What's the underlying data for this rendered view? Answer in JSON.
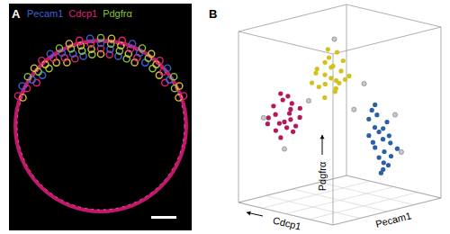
{
  "panel_a": {
    "label": "A",
    "stains": [
      {
        "text": "Pecam1",
        "color": "#3b62d6"
      },
      {
        "text": "Cdcp1",
        "color": "#e0207a"
      },
      {
        "text": "Pdgfrα",
        "color": "#8cc43c"
      }
    ]
  },
  "panel_b": {
    "label": "B"
  },
  "chart_data": {
    "type": "scatter3d",
    "tick_labels": false,
    "grid": true,
    "x_label": "Pecam1",
    "y_label": "Pdgfrα",
    "z_label": "Cdcp1",
    "xlim": [
      0,
      1
    ],
    "ylim": [
      0,
      1
    ],
    "zlim": [
      0,
      1
    ],
    "xticks": [
      0,
      0.25,
      0.5,
      0.75,
      1
    ],
    "zticks": [
      0,
      0.25,
      0.5,
      0.75,
      1
    ],
    "marker": "circle",
    "series": [
      {
        "color": "#b5175a",
        "x": [
          0.15,
          0.18,
          0.22,
          0.2,
          0.25,
          0.17,
          0.12,
          0.23,
          0.19,
          0.27,
          0.14,
          0.21,
          0.24,
          0.16,
          0.2,
          0.26,
          0.13,
          0.22,
          0.18,
          0.28
        ],
        "values": [
          0.52,
          0.48,
          0.55,
          0.6,
          0.45,
          0.42,
          0.5,
          0.62,
          0.38,
          0.5,
          0.57,
          0.44,
          0.58,
          0.47,
          0.53,
          0.41,
          0.46,
          0.49,
          0.64,
          0.55
        ],
        "z": [
          0.78,
          0.72,
          0.7,
          0.76,
          0.68,
          0.8,
          0.82,
          0.74,
          0.77,
          0.66,
          0.79,
          0.73,
          0.71,
          0.75,
          0.69,
          0.72,
          0.84,
          0.7,
          0.76,
          0.67
        ]
      },
      {
        "color": "#d4c21c",
        "x": [
          0.38,
          0.42,
          0.45,
          0.35,
          0.4,
          0.48,
          0.36,
          0.43,
          0.39,
          0.46,
          0.41,
          0.33,
          0.44,
          0.37,
          0.5,
          0.42,
          0.4,
          0.47,
          0.34,
          0.43,
          0.39,
          0.45
        ],
        "values": [
          0.75,
          0.8,
          0.7,
          0.68,
          0.85,
          0.72,
          0.78,
          0.65,
          0.82,
          0.77,
          0.73,
          0.7,
          0.88,
          0.62,
          0.74,
          0.79,
          0.69,
          0.83,
          0.76,
          0.67,
          0.9,
          0.71
        ],
        "z": [
          0.52,
          0.48,
          0.45,
          0.55,
          0.5,
          0.42,
          0.58,
          0.47,
          0.53,
          0.44,
          0.49,
          0.6,
          0.46,
          0.51,
          0.4,
          0.5,
          0.54,
          0.43,
          0.57,
          0.46,
          0.5,
          0.48
        ]
      },
      {
        "color": "#2b5fa8",
        "x": [
          0.58,
          0.62,
          0.65,
          0.55,
          0.6,
          0.68,
          0.57,
          0.63,
          0.61,
          0.66,
          0.59,
          0.64,
          0.56,
          0.62,
          0.7,
          0.6,
          0.67,
          0.58,
          0.63,
          0.61,
          0.65,
          0.59
        ],
        "values": [
          0.45,
          0.38,
          0.3,
          0.5,
          0.25,
          0.35,
          0.55,
          0.2,
          0.42,
          0.28,
          0.33,
          0.48,
          0.4,
          0.18,
          0.32,
          0.52,
          0.22,
          0.36,
          0.44,
          0.27,
          0.4,
          0.58
        ],
        "z": [
          0.22,
          0.18,
          0.2,
          0.25,
          0.15,
          0.17,
          0.24,
          0.19,
          0.21,
          0.14,
          0.23,
          0.16,
          0.26,
          0.2,
          0.12,
          0.22,
          0.18,
          0.24,
          0.19,
          0.21,
          0.15,
          0.23
        ]
      },
      {
        "color": "#c8c8c8",
        "x": [
          0.3,
          0.5,
          0.72,
          0.25,
          0.55,
          0.45,
          0.1,
          0.75
        ],
        "values": [
          0.6,
          0.55,
          0.3,
          0.3,
          0.7,
          0.95,
          0.5,
          0.5
        ],
        "z": [
          0.6,
          0.35,
          0.1,
          0.8,
          0.3,
          0.5,
          0.85,
          0.2
        ]
      }
    ]
  }
}
